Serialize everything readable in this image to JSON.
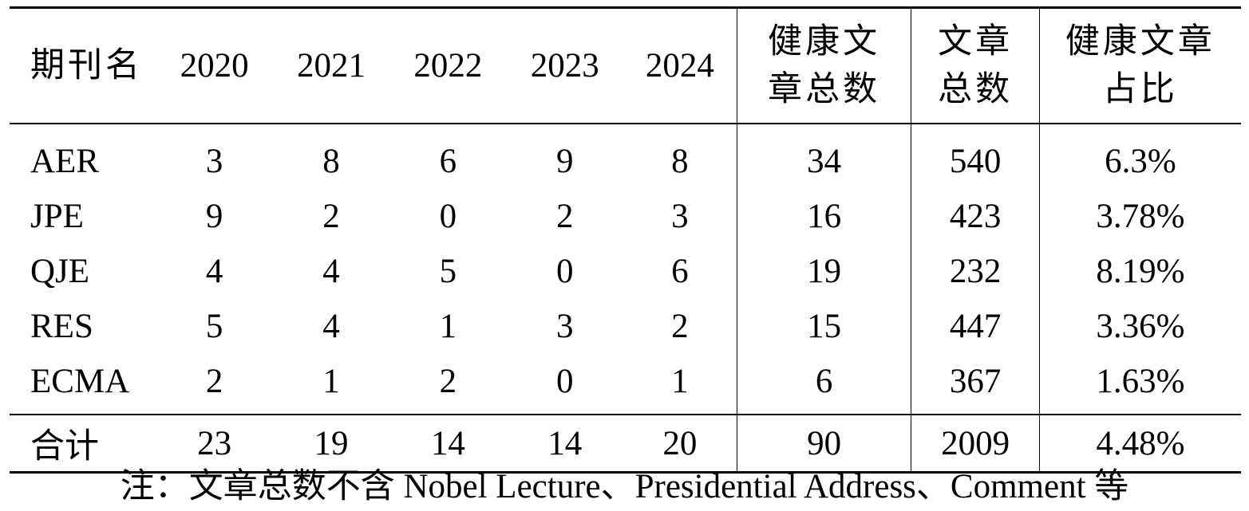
{
  "table": {
    "headers": {
      "name": "期刊名",
      "years": [
        "2020",
        "2021",
        "2022",
        "2023",
        "2024"
      ],
      "health_total_line1": "健康文",
      "health_total_line2": "章总数",
      "article_total_line1": "文章",
      "article_total_line2": "总数",
      "health_ratio_line1": "健康文章",
      "health_ratio_line2": "占比"
    },
    "rows": [
      {
        "name": "AER",
        "years": [
          "3",
          "8",
          "6",
          "9",
          "8"
        ],
        "health_total": "34",
        "article_total": "540",
        "ratio": "6.3%"
      },
      {
        "name": "JPE",
        "years": [
          "9",
          "2",
          "0",
          "2",
          "3"
        ],
        "health_total": "16",
        "article_total": "423",
        "ratio": "3.78%"
      },
      {
        "name": "QJE",
        "years": [
          "4",
          "4",
          "5",
          "0",
          "6"
        ],
        "health_total": "19",
        "article_total": "232",
        "ratio": "8.19%"
      },
      {
        "name": "RES",
        "years": [
          "5",
          "4",
          "1",
          "3",
          "2"
        ],
        "health_total": "15",
        "article_total": "447",
        "ratio": "3.36%"
      },
      {
        "name": "ECMA",
        "years": [
          "2",
          "1",
          "2",
          "0",
          "1"
        ],
        "health_total": "6",
        "article_total": "367",
        "ratio": "1.63%"
      }
    ],
    "total": {
      "name": "合计",
      "years": [
        "23",
        "19",
        "14",
        "14",
        "20"
      ],
      "health_total": "90",
      "article_total": "2009",
      "ratio": "4.48%"
    }
  },
  "note": "注：文章总数不含 Nobel Lecture、Presidential Address、Comment 等"
}
